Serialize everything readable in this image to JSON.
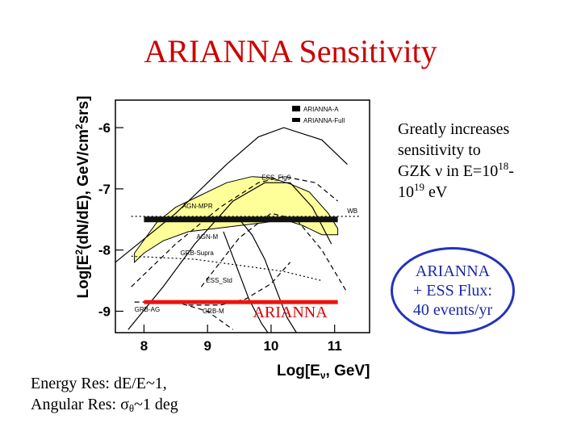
{
  "title": "ARIANNA Sensitivity",
  "side_note": {
    "line1": "Greatly increases",
    "line2": "sensitivity to",
    "line3_pre": "GZK ν in E=10",
    "exp1": "18",
    "line3_post": "-",
    "line4_pre": "10",
    "exp2": "19",
    "line4_post": " eV"
  },
  "callout": {
    "line1": "ARIANNA",
    "line2": "+ ESS Flux:",
    "line3": "40 events/yr",
    "border_color": "#2233bb"
  },
  "resolution": {
    "line1": "Energy Res:  dE/E~1,",
    "line2_pre": "Angular Res: σ",
    "line2_sub": "θ",
    "line2_post": "~1 deg"
  },
  "chart_data": {
    "type": "line",
    "ylabel_pre": "Log[E",
    "ylabel_sup1": "2",
    "ylabel_mid": "(dN/dE), GeV/cm",
    "ylabel_sup2": "2",
    "ylabel_post": "srs]",
    "xlabel_pre": "Log[E",
    "xlabel_sub": "ν",
    "xlabel_post": ", GeV]",
    "xlim": [
      7.55,
      11.55
    ],
    "ylim": [
      -9.35,
      -5.55
    ],
    "xticks": [
      "8",
      "9",
      "10",
      "11"
    ],
    "yticks": [
      "-6",
      "-7",
      "-8",
      "-9"
    ],
    "grid": false,
    "legend_position": "top-right",
    "legend": [
      {
        "label": "ARIANNA-A",
        "color": "#000000",
        "style": "thick"
      },
      {
        "label": "ARIANNA-Full",
        "color": "#000000",
        "style": "medium"
      }
    ],
    "colors": {
      "band": "#ffff99",
      "arianna_a": "#111111",
      "arianna_red": "#ee1111",
      "arianna_text": "#dd0000"
    },
    "series": [
      {
        "name": "AGN-MPR",
        "style": "solid",
        "x": [
          7.55,
          8.5,
          9.3,
          9.8,
          10.2,
          10.8,
          11.2
        ],
        "y": [
          -8.2,
          -7.4,
          -6.6,
          -6.15,
          -6.0,
          -6.2,
          -6.6
        ]
      },
      {
        "name": "AGN-M",
        "style": "solid",
        "x": [
          7.75,
          8.3,
          8.8,
          9.4,
          9.9,
          10.3,
          10.65,
          10.95
        ],
        "y": [
          -9.3,
          -8.6,
          -7.9,
          -7.2,
          -6.9,
          -6.9,
          -7.3,
          -7.9
        ]
      },
      {
        "name": "ESS_Fig9",
        "style": "dashed",
        "x": [
          7.8,
          8.5,
          9.2,
          9.8,
          10.2,
          10.7,
          11.05
        ],
        "y": [
          -8.6,
          -7.9,
          -7.3,
          -6.9,
          -6.8,
          -6.9,
          -7.2
        ]
      },
      {
        "name": "WB",
        "style": "dotted",
        "x": [
          7.8,
          11.4
        ],
        "y": [
          -7.45,
          -7.45
        ]
      },
      {
        "name": "ESS_Std",
        "style": "dashed",
        "x": [
          8.9,
          9.5,
          10.0,
          10.4,
          10.8,
          11.2
        ],
        "y": [
          -8.6,
          -7.8,
          -7.4,
          -7.5,
          -8.0,
          -8.7
        ]
      },
      {
        "name": "GRB-Supra",
        "style": "dotted",
        "x": [
          7.8,
          8.8,
          9.5,
          10.2,
          10.8
        ],
        "y": [
          -8.1,
          -8.15,
          -8.25,
          -8.35,
          -8.5
        ]
      },
      {
        "name": "GRB-M",
        "style": "dashed",
        "x": [
          8.7,
          9.2,
          9.6,
          10.0,
          10.3
        ],
        "y": [
          -8.9,
          -8.9,
          -8.8,
          -8.55,
          -8.2
        ]
      },
      {
        "name": "GRB-AG",
        "style": "dashed",
        "x": [
          7.85,
          8.5,
          9.0,
          9.4
        ],
        "y": [
          -8.85,
          -8.85,
          -9.0,
          -9.3
        ]
      },
      {
        "name": "",
        "style": "solid",
        "x": [
          9.5,
          9.7,
          9.9,
          10.1,
          10.25,
          10.4
        ],
        "y": [
          -7.5,
          -7.75,
          -8.15,
          -8.7,
          -9.1,
          -9.35
        ]
      },
      {
        "name": "",
        "style": "solid",
        "x": [
          9.25,
          9.45,
          9.65,
          9.85,
          9.95
        ],
        "y": [
          -7.7,
          -8.25,
          -8.8,
          -9.2,
          -9.35
        ]
      }
    ],
    "band": {
      "x_upper": [
        7.85,
        8.2,
        8.5,
        8.9,
        9.3,
        9.7,
        10.0,
        10.3,
        10.6,
        10.9,
        11.05
      ],
      "y_upper": [
        -8.05,
        -7.55,
        -7.3,
        -7.1,
        -6.9,
        -6.8,
        -6.82,
        -6.92,
        -7.05,
        -7.4,
        -7.65
      ],
      "x_lower": [
        11.05,
        10.8,
        10.5,
        10.2,
        9.9,
        9.5,
        9.1,
        8.7,
        8.3,
        8.0,
        7.85
      ],
      "y_lower": [
        -7.75,
        -7.75,
        -7.6,
        -7.5,
        -7.55,
        -7.6,
        -7.65,
        -7.7,
        -7.85,
        -8.05,
        -8.2
      ]
    },
    "sensitivity": [
      {
        "name": "ARIANNA-A",
        "x": [
          8.0,
          11.05
        ],
        "y": [
          -7.5,
          -7.5
        ]
      },
      {
        "name": "ARIANNA",
        "x": [
          8.0,
          11.05
        ],
        "y": [
          -8.85,
          -8.85
        ]
      }
    ],
    "annotations": {
      "arianna_label": "ARIANNA",
      "arianna_label_x": 10.3,
      "arianna_label_y": -9.1
    }
  }
}
